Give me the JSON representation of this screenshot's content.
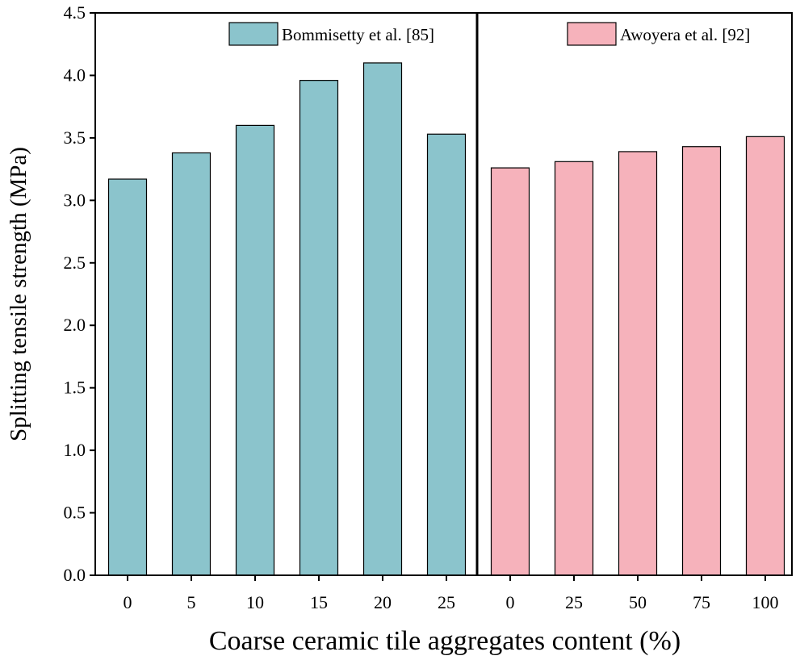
{
  "chart_data": {
    "type": "bar",
    "xlabel": "Coarse ceramic tile aggregates content (%)",
    "ylabel": "Splitting tensile strength (MPa)",
    "ylim": [
      0,
      4.5
    ],
    "yticks": [
      "0.0",
      "0.5",
      "1.0",
      "1.5",
      "2.0",
      "2.5",
      "3.0",
      "3.5",
      "4.0",
      "4.5"
    ],
    "grid": false,
    "series": [
      {
        "name": "Bommisetty et al. [85]",
        "color": "#8bc4cc",
        "categories": [
          "0",
          "5",
          "10",
          "15",
          "20",
          "25"
        ],
        "values": [
          3.17,
          3.38,
          3.6,
          3.96,
          4.1,
          3.53
        ]
      },
      {
        "name": "Awoyera et al. [92]",
        "color": "#f6b2bb",
        "categories": [
          "0",
          "25",
          "50",
          "75",
          "100"
        ],
        "values": [
          3.26,
          3.31,
          3.39,
          3.43,
          3.51
        ]
      }
    ]
  }
}
